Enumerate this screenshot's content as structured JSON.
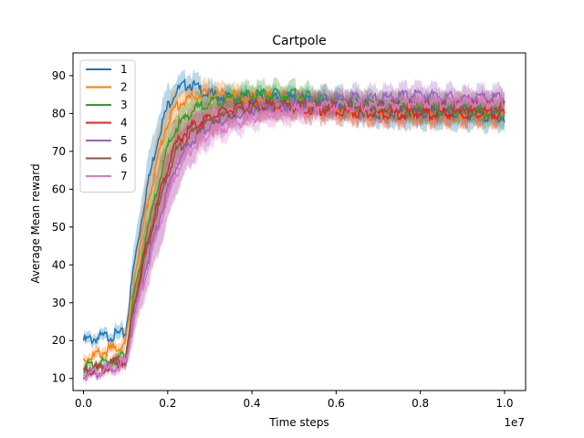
{
  "chart_data": {
    "type": "line",
    "title": "Cartpole",
    "xlabel": "Time steps",
    "ylabel": "Average Mean reward",
    "x_offset_label": "1e7",
    "xlim": [
      -0.025,
      1.05
    ],
    "ylim": [
      6.8,
      96
    ],
    "x_ticks": [
      0.0,
      0.2,
      0.4,
      0.6,
      0.8,
      1.0
    ],
    "x_tick_labels": [
      "0.0",
      "0.2",
      "0.4",
      "0.6",
      "0.8",
      "1.0"
    ],
    "y_ticks": [
      10,
      20,
      30,
      40,
      50,
      60,
      70,
      80,
      90
    ],
    "y_tick_labels": [
      "10",
      "20",
      "30",
      "40",
      "50",
      "60",
      "70",
      "80",
      "90"
    ],
    "grid": false,
    "legend_position": "top-left",
    "x": [
      0.0,
      0.05,
      0.1,
      0.12,
      0.15,
      0.18,
      0.2,
      0.22,
      0.25,
      0.28,
      0.3,
      0.35,
      0.4,
      0.45,
      0.5,
      0.55,
      0.6,
      0.7,
      0.8,
      0.9,
      1.0
    ],
    "series": [
      {
        "name": "1",
        "color": "#1f77b4",
        "values": [
          20,
          21,
          22,
          40,
          60,
          75,
          82,
          86,
          88,
          86,
          85,
          84,
          84,
          84,
          84,
          83,
          82,
          80,
          80,
          80,
          79
        ],
        "band": [
          1.5,
          1.5,
          2,
          5,
          7,
          6,
          5,
          3,
          3,
          3,
          3,
          2.5,
          2.5,
          2.5,
          2.5,
          2.5,
          3,
          3,
          4,
          4,
          3
        ]
      },
      {
        "name": "2",
        "color": "#ff7f0e",
        "values": [
          15,
          17,
          19,
          36,
          55,
          70,
          78,
          82,
          84,
          85,
          85,
          85,
          84,
          84,
          83,
          82,
          81,
          80,
          80,
          80,
          80
        ],
        "band": [
          1.5,
          1.5,
          2,
          5,
          7,
          6,
          5,
          4,
          3,
          3,
          3,
          2.5,
          2.5,
          2.5,
          2.5,
          2.5,
          2.5,
          2.5,
          3,
          3,
          3
        ]
      },
      {
        "name": "3",
        "color": "#2ca02c",
        "values": [
          13,
          14,
          16,
          32,
          48,
          62,
          71,
          76,
          80,
          82,
          83,
          84,
          85,
          85,
          85,
          84,
          83,
          82,
          81,
          81,
          80
        ],
        "band": [
          1,
          1,
          1.5,
          4,
          6,
          6,
          5,
          4,
          4,
          3,
          3,
          3,
          3,
          3,
          3,
          3,
          3,
          3,
          3,
          3,
          3
        ]
      },
      {
        "name": "4",
        "color": "#d62728",
        "values": [
          12,
          13,
          15,
          30,
          45,
          58,
          66,
          72,
          76,
          78,
          79,
          81,
          82,
          82,
          82,
          81,
          81,
          80,
          80,
          80,
          80
        ],
        "band": [
          1,
          1,
          1.5,
          4,
          6,
          8,
          8,
          6,
          5,
          4,
          4,
          3,
          3,
          3,
          3,
          3,
          3,
          3,
          3,
          3,
          3
        ]
      },
      {
        "name": "5",
        "color": "#9467bd",
        "values": [
          11,
          12,
          14,
          26,
          40,
          52,
          60,
          66,
          72,
          75,
          77,
          79,
          81,
          82,
          82,
          83,
          84,
          84,
          85,
          84,
          84
        ],
        "band": [
          1,
          1,
          1.5,
          4,
          6,
          8,
          8,
          7,
          6,
          5,
          4,
          3.5,
          3,
          3,
          3,
          3,
          3,
          3,
          3,
          3,
          3
        ]
      },
      {
        "name": "6",
        "color": "#8c564b",
        "values": [
          12,
          13,
          15,
          29,
          44,
          56,
          64,
          70,
          74,
          77,
          78,
          80,
          81,
          82,
          82,
          82,
          82,
          82,
          82,
          82,
          82
        ],
        "band": [
          1,
          1,
          1.5,
          4,
          5,
          6,
          6,
          5,
          4,
          4,
          3.5,
          3,
          3,
          3,
          3,
          3,
          3,
          3,
          3,
          3,
          3
        ]
      },
      {
        "name": "7",
        "color": "#e377c2",
        "values": [
          11,
          12,
          14,
          25,
          38,
          50,
          58,
          64,
          70,
          73,
          75,
          77,
          79,
          80,
          81,
          82,
          82,
          82,
          83,
          83,
          83
        ],
        "band": [
          1,
          1,
          1.5,
          4,
          5,
          6,
          6,
          5,
          4,
          4,
          3.5,
          3,
          3,
          3,
          3,
          3,
          3,
          3,
          3,
          3,
          3
        ]
      }
    ]
  }
}
